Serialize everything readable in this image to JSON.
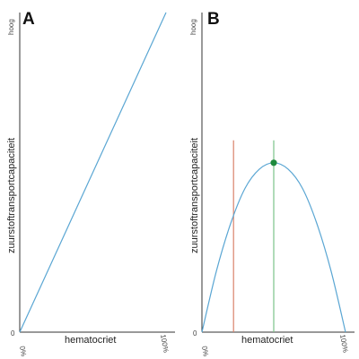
{
  "chart_data": [
    {
      "type": "line",
      "panel_label": "A",
      "xlabel": "hematocriet",
      "ylabel": "zuurstoftransportcapaciteit",
      "x_tick_labels": [
        "0%",
        "100%"
      ],
      "y_tick_labels": [
        "0",
        "hoog"
      ],
      "xlim": [
        0,
        100
      ],
      "ylim": [
        0,
        100
      ],
      "series": [
        {
          "x": [
            0,
            100
          ],
          "y": [
            0,
            100
          ],
          "color": "#5aa6d3"
        }
      ]
    },
    {
      "type": "line",
      "panel_label": "B",
      "xlabel": "hematocriet",
      "ylabel": "zuurstoftransportcapaciteit",
      "x_tick_labels": [
        "0%",
        "100%"
      ],
      "y_tick_labels": [
        "0",
        "hoog"
      ],
      "xlim": [
        0,
        100
      ],
      "ylim": [
        0,
        100
      ],
      "series": [
        {
          "x": [
            0,
            10,
            20,
            30,
            40,
            50,
            60,
            70,
            80,
            90,
            100
          ],
          "y": [
            0,
            19,
            34,
            45,
            51,
            53,
            51,
            45,
            34,
            19,
            0
          ],
          "color": "#5aa6d3"
        }
      ],
      "vertical_lines": [
        {
          "x": 22,
          "y_top": 60,
          "color": "#d9826a"
        },
        {
          "x": 50,
          "y_top": 60,
          "color": "#7cc38a"
        }
      ],
      "marker": {
        "x": 50,
        "y": 53,
        "color": "#1e8a3c"
      }
    }
  ]
}
